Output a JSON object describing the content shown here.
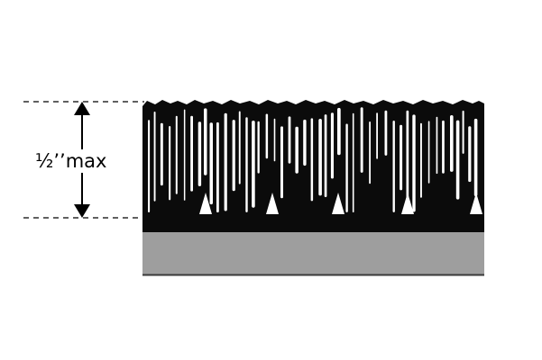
{
  "dimension": {
    "label": "½’’max"
  },
  "colors": {
    "pile": "#0b0b0b",
    "backing": "#9e9e9e",
    "base_line": "#3a3a3a",
    "guide_line": "#000000",
    "background": "#ffffff"
  }
}
